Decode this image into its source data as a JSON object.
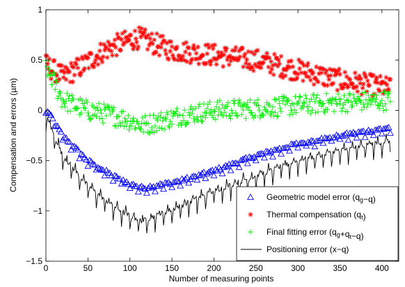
{
  "chart_data": {
    "type": "scatter",
    "title": "",
    "xlabel": "Number of measuring points",
    "ylabel": "Compensation and errors (µm)",
    "xlim": [
      0,
      420
    ],
    "ylim": [
      -1.5,
      1
    ],
    "xticks": [
      0,
      50,
      100,
      150,
      200,
      250,
      300,
      350,
      400
    ],
    "yticks": [
      -1.5,
      -1,
      -0.5,
      0,
      0.5,
      1
    ],
    "xtick_labels": [
      "0",
      "50",
      "100",
      "150",
      "200",
      "250",
      "300",
      "350",
      "400"
    ],
    "ytick_labels": [
      "−1.5",
      "−1",
      "−0.5",
      "0",
      "0.5",
      "1"
    ],
    "grid": false,
    "legend_position": "bottom-right",
    "n_points": 410,
    "series": [
      {
        "key": "geometric",
        "marker": "triangle",
        "color": "#0000ff",
        "legend": [
          {
            "t": "Geometric model error (q"
          },
          {
            "t": "g",
            "sub": true
          },
          {
            "t": "−q)"
          }
        ],
        "anchors": [
          [
            0,
            0.02
          ],
          [
            20,
            -0.25
          ],
          [
            50,
            -0.5
          ],
          [
            80,
            -0.65
          ],
          [
            100,
            -0.73
          ],
          [
            115,
            -0.77
          ],
          [
            130,
            -0.75
          ],
          [
            160,
            -0.7
          ],
          [
            200,
            -0.6
          ],
          [
            250,
            -0.45
          ],
          [
            300,
            -0.33
          ],
          [
            350,
            -0.25
          ],
          [
            410,
            -0.17
          ]
        ]
      },
      {
        "key": "thermal",
        "marker": "asterisk",
        "color": "#ff0000",
        "legend": [
          {
            "t": "Thermal compensation (q"
          },
          {
            "t": "t",
            "sub": true
          },
          {
            "t": ")"
          }
        ],
        "anchors": [
          [
            0,
            0.45
          ],
          [
            20,
            0.33
          ],
          [
            45,
            0.45
          ],
          [
            70,
            0.6
          ],
          [
            100,
            0.7
          ],
          [
            110,
            0.72
          ],
          [
            150,
            0.6
          ],
          [
            200,
            0.55
          ],
          [
            250,
            0.5
          ],
          [
            300,
            0.4
          ],
          [
            350,
            0.3
          ],
          [
            410,
            0.22
          ]
        ]
      },
      {
        "key": "final",
        "marker": "plus",
        "color": "#00ee00",
        "legend": [
          {
            "t": "Final fitting error (q"
          },
          {
            "t": "g",
            "sub": true
          },
          {
            "t": "+q"
          },
          {
            "t": "t",
            "sub": true
          },
          {
            "t": "−q)"
          }
        ],
        "anchors": [
          [
            0,
            0.45
          ],
          [
            20,
            0.1
          ],
          [
            50,
            0.0
          ],
          [
            80,
            -0.05
          ],
          [
            100,
            -0.1
          ],
          [
            115,
            -0.15
          ],
          [
            130,
            -0.12
          ],
          [
            160,
            -0.05
          ],
          [
            200,
            0.0
          ],
          [
            250,
            0.02
          ],
          [
            300,
            0.05
          ],
          [
            350,
            0.08
          ],
          [
            410,
            0.1
          ]
        ]
      },
      {
        "key": "positioning",
        "marker": "line",
        "color": "#000000",
        "legend": [
          {
            "t": "Positioning error (x−q)"
          }
        ],
        "anchors": [
          [
            0,
            -0.05
          ],
          [
            20,
            -0.45
          ],
          [
            50,
            -0.75
          ],
          [
            80,
            -0.95
          ],
          [
            100,
            -1.05
          ],
          [
            115,
            -1.1
          ],
          [
            130,
            -1.05
          ],
          [
            160,
            -0.95
          ],
          [
            200,
            -0.8
          ],
          [
            250,
            -0.65
          ],
          [
            300,
            -0.5
          ],
          [
            350,
            -0.4
          ],
          [
            410,
            -0.3
          ]
        ]
      }
    ]
  }
}
